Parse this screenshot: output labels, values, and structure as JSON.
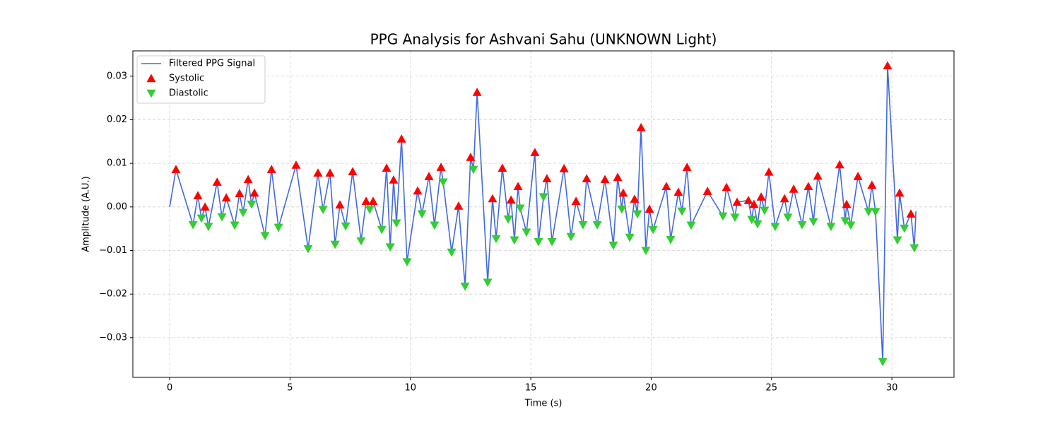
{
  "chart_data": {
    "type": "line",
    "title": "PPG Analysis for Ashvani Sahu (UNKNOWN Light)",
    "xlabel": "Time (s)",
    "ylabel": "Amplitude (A.U.)",
    "xlim": [
      -1.53,
      32.58
    ],
    "ylim": [
      -0.0391,
      0.0358
    ],
    "xticks": [
      0,
      5,
      10,
      15,
      20,
      25,
      30
    ],
    "yticks": [
      {
        "value": -0.03,
        "label": "−0.03"
      },
      {
        "value": -0.02,
        "label": "−0.02"
      },
      {
        "value": -0.01,
        "label": "−0.01"
      },
      {
        "value": 0,
        "label": "0.00"
      },
      0.01,
      0.02,
      0.03
    ],
    "grid": true,
    "legend": "upper left",
    "series": [
      {
        "name": "Filtered PPG Signal",
        "color": "#4169e1",
        "x": [
          0,
          0.26,
          0.97,
          1.17,
          1.32,
          1.47,
          1.61,
          1.97,
          2.17,
          2.35,
          2.7,
          2.9,
          3.05,
          3.26,
          3.4,
          3.52,
          3.96,
          4.23,
          4.52,
          5.25,
          5.75,
          6.16,
          6.37,
          6.66,
          6.87,
          7.07,
          7.31,
          7.6,
          7.95,
          8.16,
          8.31,
          8.45,
          8.81,
          9.01,
          9.16,
          9.3,
          9.42,
          9.63,
          9.86,
          10.3,
          10.48,
          10.77,
          11.0,
          11.27,
          11.36,
          11.71,
          12.0,
          12.27,
          12.5,
          12.62,
          12.77,
          13.21,
          13.41,
          13.56,
          13.82,
          14.06,
          14.18,
          14.32,
          14.47,
          14.56,
          14.82,
          15.17,
          15.32,
          15.53,
          15.67,
          15.88,
          16.38,
          16.67,
          16.88,
          17.17,
          17.32,
          17.76,
          18.08,
          18.43,
          18.61,
          18.78,
          18.84,
          19.11,
          19.31,
          19.43,
          19.58,
          19.78,
          19.93,
          20.08,
          20.63,
          20.81,
          21.13,
          21.28,
          21.49,
          21.66,
          22.34,
          22.98,
          23.13,
          23.48,
          23.57,
          24.04,
          24.18,
          24.27,
          24.42,
          24.57,
          24.71,
          24.89,
          25.15,
          25.54,
          25.68,
          25.92,
          26.27,
          26.53,
          26.74,
          26.92,
          27.47,
          27.83,
          28.06,
          28.12,
          28.29,
          28.59,
          29.03,
          29.17,
          29.32,
          29.62,
          29.82,
          30.23,
          30.32,
          30.52,
          30.79,
          30.93,
          31.0
        ],
        "values": [
          0,
          0.0086,
          -0.0041,
          0.0026,
          -0.0026,
          0,
          -0.0045,
          0.0057,
          -0.0023,
          0.0021,
          -0.0042,
          0.0031,
          -0.0013,
          0.0063,
          0.0006,
          0.0032,
          -0.0066,
          0.0086,
          -0.0047,
          0.0096,
          -0.0096,
          0.0078,
          -0.0006,
          0.0078,
          -0.0086,
          0.0005,
          -0.0044,
          0.0081,
          -0.0078,
          0.0013,
          -0.0006,
          0.0013,
          -0.0052,
          0.0089,
          -0.0092,
          0.0062,
          -0.0037,
          0.0156,
          -0.0126,
          0.0037,
          -0.0016,
          0.007,
          -0.0042,
          0.0091,
          0.0057,
          -0.0104,
          0.0002,
          -0.0182,
          0.0114,
          0.0086,
          0.0263,
          -0.0173,
          0.0019,
          -0.0073,
          0.0089,
          -0.0028,
          0.0016,
          -0.0076,
          0.0047,
          -0.0003,
          -0.0058,
          0.0125,
          -0.008,
          0.0023,
          0.0065,
          -0.008,
          0.0088,
          -0.0068,
          0.0013,
          -0.0041,
          0.0065,
          -0.0041,
          0.0063,
          -0.0088,
          0.0068,
          -0.0005,
          0.0032,
          -0.007,
          0.0018,
          -0.0016,
          0.0182,
          -0.01,
          -0.0005,
          -0.0052,
          0.0047,
          -0.0075,
          0.0034,
          -0.001,
          0.0091,
          -0.0042,
          0.0036,
          -0.0021,
          0.0045,
          -0.0024,
          0.0011,
          0.0015,
          -0.0029,
          0.0006,
          -0.0039,
          0.0023,
          -0.0008,
          0.008,
          -0.0045,
          0.0019,
          -0.0024,
          0.0041,
          -0.0041,
          0.0047,
          -0.0034,
          0.0071,
          -0.0045,
          0.0097,
          -0.0032,
          0.0006,
          -0.0042,
          0.007,
          -0.0011,
          0.005,
          -0.0011,
          -0.0355,
          0.0324,
          -0.0076,
          0.0032,
          -0.0049,
          -0.0016,
          -0.0094,
          -0.001
        ]
      },
      {
        "name": "Systolic",
        "color": "#ff0000",
        "marker": "triangle-up",
        "x": [
          0.26,
          1.17,
          1.47,
          1.97,
          2.35,
          2.9,
          3.26,
          3.52,
          4.23,
          5.25,
          6.16,
          6.66,
          7.07,
          7.6,
          8.16,
          8.45,
          9.01,
          9.3,
          9.63,
          10.3,
          10.77,
          11.27,
          12.0,
          12.5,
          12.77,
          13.41,
          13.82,
          14.18,
          14.47,
          15.17,
          15.67,
          16.38,
          16.88,
          17.32,
          18.08,
          18.61,
          18.84,
          19.31,
          19.58,
          19.93,
          20.63,
          21.13,
          21.49,
          22.34,
          23.13,
          23.57,
          24.04,
          24.27,
          24.57,
          24.89,
          25.54,
          25.92,
          26.53,
          26.92,
          27.83,
          28.12,
          28.59,
          29.17,
          29.82,
          30.32,
          30.79
        ],
        "values": [
          0.0086,
          0.0026,
          0,
          0.0057,
          0.0021,
          0.0031,
          0.0063,
          0.0032,
          0.0086,
          0.0096,
          0.0078,
          0.0078,
          0.0005,
          0.0081,
          0.0013,
          0.0013,
          0.0089,
          0.0062,
          0.0156,
          0.0037,
          0.007,
          0.0091,
          0.0002,
          0.0114,
          0.0263,
          0.0019,
          0.0089,
          0.0016,
          0.0047,
          0.0125,
          0.0065,
          0.0088,
          0.0013,
          0.0065,
          0.0063,
          0.0068,
          0.0032,
          0.0018,
          0.0182,
          -0.0005,
          0.0047,
          0.0034,
          0.0091,
          0.0036,
          0.0045,
          0.0011,
          0.0015,
          0.0006,
          0.0023,
          0.008,
          0.0019,
          0.0041,
          0.0047,
          0.0071,
          0.0097,
          0.0006,
          0.007,
          0.005,
          0.0324,
          0.0032,
          -0.0016
        ]
      },
      {
        "name": "Diastolic",
        "color": "#32cd32",
        "marker": "triangle-down",
        "x": [
          0.97,
          1.32,
          1.61,
          2.17,
          2.7,
          3.05,
          3.4,
          3.96,
          4.52,
          5.75,
          6.37,
          6.87,
          7.31,
          7.95,
          8.31,
          8.81,
          9.16,
          9.42,
          9.86,
          10.48,
          11.0,
          11.36,
          11.71,
          12.27,
          12.62,
          13.21,
          13.56,
          14.06,
          14.32,
          14.56,
          14.82,
          15.32,
          15.53,
          15.88,
          16.67,
          17.17,
          17.76,
          18.43,
          18.78,
          19.11,
          19.43,
          19.78,
          20.08,
          20.81,
          21.28,
          21.66,
          22.98,
          23.48,
          24.18,
          24.42,
          24.71,
          25.15,
          25.68,
          26.27,
          26.74,
          27.47,
          28.06,
          28.29,
          29.03,
          29.32,
          29.62,
          30.23,
          30.52,
          30.93
        ],
        "values": [
          -0.0041,
          -0.0026,
          -0.0045,
          -0.0023,
          -0.0042,
          -0.0013,
          0.0006,
          -0.0066,
          -0.0047,
          -0.0096,
          -0.0006,
          -0.0086,
          -0.0044,
          -0.0078,
          -0.0006,
          -0.0052,
          -0.0092,
          -0.0037,
          -0.0126,
          -0.0016,
          -0.0042,
          0.0057,
          -0.0104,
          -0.0182,
          0.0086,
          -0.0173,
          -0.0073,
          -0.0028,
          -0.0076,
          -0.0003,
          -0.0058,
          -0.008,
          0.0023,
          -0.008,
          -0.0068,
          -0.0041,
          -0.0041,
          -0.0088,
          -0.0005,
          -0.007,
          -0.0016,
          -0.01,
          -0.0052,
          -0.0075,
          -0.001,
          -0.0042,
          -0.0021,
          -0.0024,
          -0.0029,
          -0.0039,
          -0.0008,
          -0.0045,
          -0.0024,
          -0.0041,
          -0.0034,
          -0.0045,
          -0.0032,
          -0.0042,
          -0.0011,
          -0.0011,
          -0.0355,
          -0.0076,
          -0.0049,
          -0.0094
        ]
      }
    ]
  }
}
